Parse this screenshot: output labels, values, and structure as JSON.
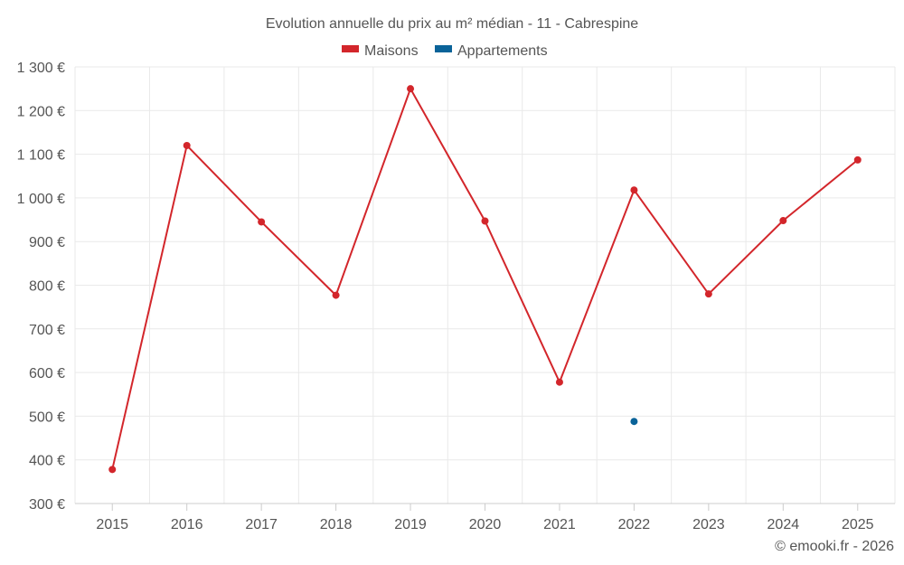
{
  "chart_data": {
    "type": "line",
    "title": "Evolution annuelle du prix au m² médian - 11 - Cabrespine",
    "categories": [
      "2015",
      "2016",
      "2017",
      "2018",
      "2019",
      "2020",
      "2021",
      "2022",
      "2023",
      "2024",
      "2025"
    ],
    "series": [
      {
        "name": "Maisons",
        "color": "#d3262b",
        "values": [
          378,
          1120,
          945,
          777,
          1250,
          947,
          578,
          1018,
          780,
          948,
          1087
        ]
      },
      {
        "name": "Appartements",
        "color": "#0a6399",
        "values": [
          null,
          null,
          null,
          null,
          null,
          null,
          null,
          488,
          null,
          null,
          null
        ]
      }
    ],
    "ylim": [
      300,
      1300
    ],
    "yticks": [
      300,
      400,
      500,
      600,
      700,
      800,
      900,
      1000,
      1100,
      1200,
      1300
    ],
    "ytick_labels": [
      "300 €",
      "400 €",
      "500 €",
      "600 €",
      "700 €",
      "800 €",
      "900 €",
      "1 000 €",
      "1 100 €",
      "1 200 €",
      "1 300 €"
    ],
    "legend_position": "top-center",
    "grid": true
  },
  "credit": "© emooki.fr - 2026"
}
